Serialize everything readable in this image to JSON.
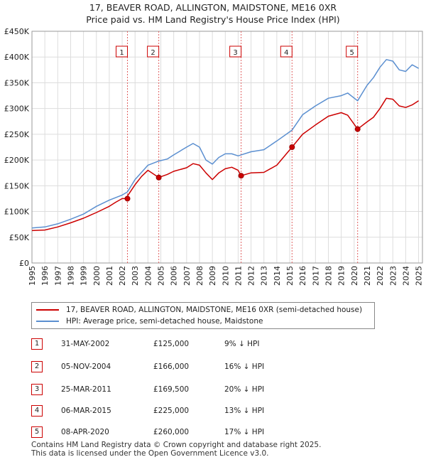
{
  "title": "17, BEAVER ROAD, ALLINGTON, MAIDSTONE, ME16 0XR",
  "subtitle": "Price paid vs. HM Land Registry's House Price Index (HPI)",
  "chart_data": {
    "type": "line",
    "title": "17, BEAVER ROAD, ALLINGTON, MAIDSTONE, ME16 0XR",
    "subtitle": "Price paid vs. HM Land Registry's House Price Index (HPI)",
    "xlim": [
      1995,
      2025.3
    ],
    "ylim": [
      0,
      450000
    ],
    "y_ticks": [
      {
        "value": 0,
        "label": "£0"
      },
      {
        "value": 50000,
        "label": "£50K"
      },
      {
        "value": 100000,
        "label": "£100K"
      },
      {
        "value": 150000,
        "label": "£150K"
      },
      {
        "value": 200000,
        "label": "£200K"
      },
      {
        "value": 250000,
        "label": "£250K"
      },
      {
        "value": 300000,
        "label": "£300K"
      },
      {
        "value": 350000,
        "label": "£350K"
      },
      {
        "value": 400000,
        "label": "£400K"
      },
      {
        "value": 450000,
        "label": "£450K"
      }
    ],
    "x_ticks": [
      "1995",
      "1996",
      "1997",
      "1998",
      "1999",
      "2000",
      "2001",
      "2002",
      "2003",
      "2004",
      "2005",
      "2006",
      "2007",
      "2008",
      "2009",
      "2010",
      "2011",
      "2012",
      "2013",
      "2014",
      "2015",
      "2016",
      "2017",
      "2018",
      "2019",
      "2020",
      "2021",
      "2022",
      "2023",
      "2024",
      "2025"
    ],
    "grid": true,
    "series": [
      {
        "name": "17, BEAVER ROAD, ALLINGTON, MAIDSTONE, ME16 0XR (semi-detached house)",
        "color": "#cc0000",
        "x": [
          1995,
          1996,
          1997,
          1998,
          1999,
          2000,
          2001,
          2001.5,
          2002.0,
          2002.41,
          2002.41,
          2003,
          2003.5,
          2004,
          2004.84,
          2004.84,
          2005.5,
          2006,
          2007,
          2007.5,
          2008,
          2008.5,
          2009,
          2009.5,
          2010,
          2010.5,
          2011.0,
          2011.23,
          2011.23,
          2012,
          2013,
          2014,
          2015.18,
          2015.18,
          2016,
          2017,
          2018,
          2019,
          2019.5,
          2020.27,
          2020.27,
          2021,
          2021.5,
          2022,
          2022.5,
          2023,
          2023.5,
          2024,
          2024.5,
          2025.0
        ],
        "values": [
          63000,
          64000,
          70000,
          78000,
          87000,
          98000,
          110000,
          118000,
          125000,
          125000,
          130000,
          152000,
          168000,
          180000,
          166000,
          166000,
          172000,
          178000,
          185000,
          193000,
          190000,
          175000,
          162000,
          175000,
          183000,
          186000,
          180000,
          169500,
          169500,
          175000,
          176000,
          190000,
          225000,
          225000,
          250000,
          268000,
          285000,
          292000,
          287000,
          260000,
          260000,
          274000,
          283000,
          300000,
          320000,
          318000,
          305000,
          302000,
          307000,
          315000
        ]
      },
      {
        "name": "HPI: Average price, semi-detached house, Maidstone",
        "color": "#5b8fd0",
        "x": [
          1995,
          1996,
          1997,
          1998,
          1999,
          2000,
          2001,
          2002,
          2002.41,
          2003,
          2004,
          2004.84,
          2005.5,
          2006,
          2007,
          2007.5,
          2008,
          2008.5,
          2009,
          2009.5,
          2010,
          2010.5,
          2011,
          2011.23,
          2012,
          2013,
          2014,
          2015.18,
          2016,
          2017,
          2018,
          2019,
          2019.5,
          2020.27,
          2021,
          2021.5,
          2022,
          2022.5,
          2023,
          2023.5,
          2024,
          2024.5,
          2025.0
        ],
        "values": [
          68000,
          70000,
          76000,
          85000,
          95000,
          110000,
          122000,
          132000,
          138000,
          162000,
          190000,
          198000,
          202000,
          210000,
          225000,
          232000,
          225000,
          200000,
          192000,
          205000,
          212000,
          212000,
          208000,
          210000,
          216000,
          220000,
          237000,
          258000,
          288000,
          305000,
          320000,
          325000,
          330000,
          315000,
          345000,
          360000,
          380000,
          395000,
          392000,
          375000,
          372000,
          385000,
          378000
        ]
      }
    ],
    "markers": [
      {
        "label": "1",
        "x": 2002.41,
        "y": 125000
      },
      {
        "label": "2",
        "x": 2004.84,
        "y": 166000
      },
      {
        "label": "3",
        "x": 2011.23,
        "y": 169500
      },
      {
        "label": "4",
        "x": 2015.18,
        "y": 225000
      },
      {
        "label": "5",
        "x": 2020.27,
        "y": 260000
      }
    ]
  },
  "legend": {
    "items": [
      {
        "label": "17, BEAVER ROAD, ALLINGTON, MAIDSTONE, ME16 0XR (semi-detached house)",
        "color": "#cc0000"
      },
      {
        "label": "HPI: Average price, semi-detached house, Maidstone",
        "color": "#5b8fd0"
      }
    ]
  },
  "sales": [
    {
      "num": "1",
      "date": "31-MAY-2002",
      "price": "£125,000",
      "hpi": "9% ↓ HPI"
    },
    {
      "num": "2",
      "date": "05-NOV-2004",
      "price": "£166,000",
      "hpi": "16% ↓ HPI"
    },
    {
      "num": "3",
      "date": "25-MAR-2011",
      "price": "£169,500",
      "hpi": "20% ↓ HPI"
    },
    {
      "num": "4",
      "date": "06-MAR-2015",
      "price": "£225,000",
      "hpi": "13% ↓ HPI"
    },
    {
      "num": "5",
      "date": "08-APR-2020",
      "price": "£260,000",
      "hpi": "17% ↓ HPI"
    }
  ],
  "footer": {
    "line1": "Contains HM Land Registry data © Crown copyright and database right 2025.",
    "line2": "This data is licensed under the Open Government Licence v3.0."
  }
}
